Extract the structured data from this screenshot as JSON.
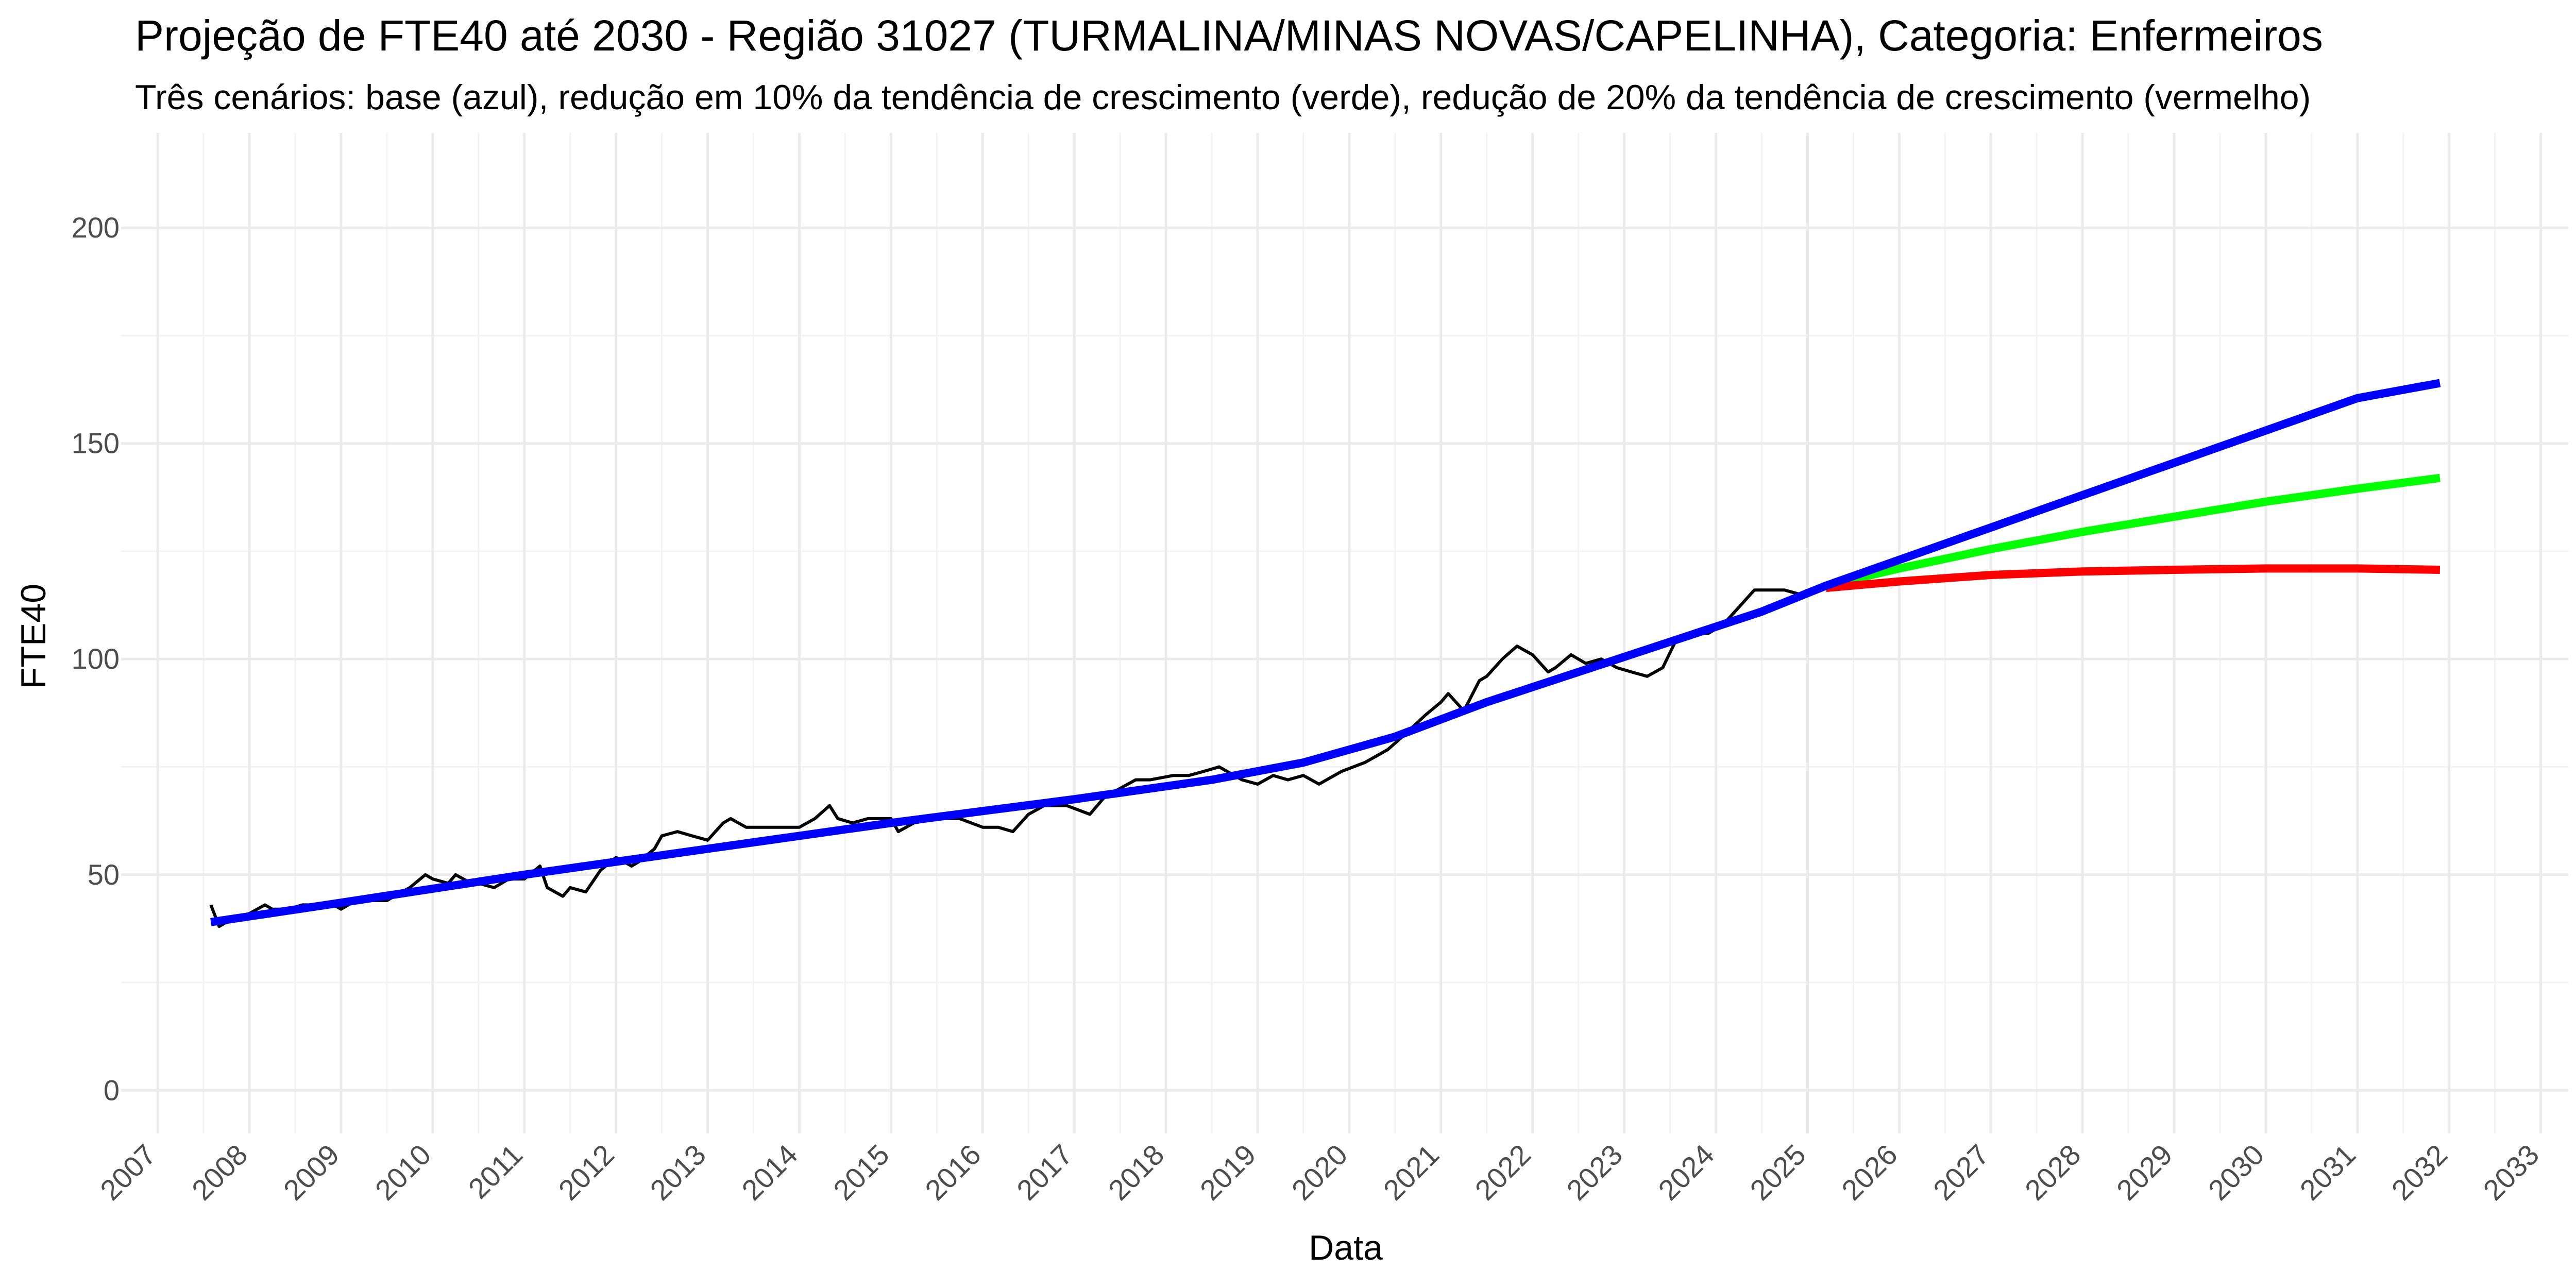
{
  "chart_data": {
    "type": "line",
    "title": "Projeção de FTE40 até 2030 - Região 31027 (TURMALINA/MINAS NOVAS/CAPELINHA), Categoria: Enfermeiros",
    "subtitle": "Três cenários: base (azul), redução em 10% da tendência de crescimento (verde), redução de 20% da tendência de crescimento (vermelho)",
    "xlabel": "Data",
    "ylabel": "FTE40",
    "xlim": [
      2006.6,
      2033.3
    ],
    "ylim": [
      -10,
      222
    ],
    "x_ticks": [
      2007,
      2008,
      2009,
      2010,
      2011,
      2012,
      2013,
      2014,
      2015,
      2016,
      2017,
      2018,
      2019,
      2020,
      2021,
      2022,
      2023,
      2024,
      2025,
      2026,
      2027,
      2028,
      2029,
      2030,
      2031,
      2032,
      2033
    ],
    "x_tick_labels": [
      "2007",
      "2008",
      "2009",
      "2010",
      "2011",
      "2012",
      "2013",
      "2014",
      "2015",
      "2016",
      "2017",
      "2018",
      "2019",
      "2020",
      "2021",
      "2022",
      "2023",
      "2024",
      "2025",
      "2026",
      "2027",
      "2028",
      "2029",
      "2030",
      "2031",
      "2032",
      "2033"
    ],
    "y_ticks": [
      0,
      50,
      100,
      150,
      200
    ],
    "y_tick_labels": [
      "0",
      "50",
      "100",
      "150",
      "200"
    ],
    "grid": true,
    "legend": "none",
    "series": [
      {
        "color": "#000000",
        "x": [
          2007.58,
          2007.67,
          2007.83,
          2008.0,
          2008.17,
          2008.25,
          2008.42,
          2008.58,
          2008.75,
          2008.92,
          2009.0,
          2009.08,
          2009.17,
          2009.33,
          2009.5,
          2009.58,
          2009.75,
          2009.92,
          2010.0,
          2010.17,
          2010.25,
          2010.42,
          2010.5,
          2010.67,
          2010.83,
          2011.0,
          2011.17,
          2011.25,
          2011.42,
          2011.5,
          2011.67,
          2011.83,
          2012.0,
          2012.17,
          2012.25,
          2012.42,
          2012.5,
          2012.67,
          2012.83,
          2013.0,
          2013.17,
          2013.25,
          2013.42,
          2013.58,
          2013.75,
          2014.0,
          2014.17,
          2014.33,
          2014.42,
          2014.58,
          2014.75,
          2015.0,
          2015.08,
          2015.25,
          2015.5,
          2015.75,
          2016.0,
          2016.17,
          2016.33,
          2016.5,
          2016.67,
          2016.92,
          2017.17,
          2017.33,
          2017.5,
          2017.67,
          2017.83,
          2018.08,
          2018.25,
          2018.42,
          2018.58,
          2018.83,
          2019.0,
          2019.17,
          2019.33,
          2019.5,
          2019.67,
          2019.92,
          2020.17,
          2020.42,
          2020.58,
          2020.83,
          2021.0,
          2021.08,
          2021.25,
          2021.42,
          2021.5,
          2021.67,
          2021.83,
          2022.0,
          2022.17,
          2022.25,
          2022.42,
          2022.58,
          2022.75,
          2022.92,
          2023.08,
          2023.25,
          2023.42,
          2023.58,
          2023.75,
          2023.92,
          2024.08,
          2024.25,
          2024.42,
          2024.58,
          2024.75,
          2024.92,
          2025.0
        ],
        "y": [
          43,
          38,
          40,
          41,
          43,
          42,
          42,
          43,
          43,
          43,
          42,
          43,
          44,
          44,
          44,
          45,
          47,
          50,
          49,
          48,
          50,
          48,
          48,
          47,
          49,
          49,
          52,
          47,
          45,
          47,
          46,
          51,
          54,
          52,
          53,
          56,
          59,
          60,
          59,
          58,
          62,
          63,
          61,
          61,
          61,
          61,
          63,
          66,
          63,
          62,
          63,
          63,
          60,
          62,
          63,
          63,
          61,
          61,
          60,
          64,
          66,
          66,
          64,
          68,
          70,
          72,
          72,
          73,
          73,
          74,
          75,
          72,
          71,
          73,
          72,
          73,
          71,
          74,
          76,
          79,
          82,
          87,
          90,
          92,
          88,
          95,
          96,
          100,
          103,
          101,
          97,
          98,
          101,
          99,
          100,
          98,
          97,
          96,
          98,
          105,
          106,
          106,
          108,
          112,
          116,
          116,
          116,
          115,
          116
        ]
      },
      {
        "color": "#0000ff",
        "x": [
          2007.58,
          2009.0,
          2011.0,
          2013.0,
          2015.0,
          2017.0,
          2018.5,
          2019.5,
          2020.5,
          2021.5,
          2022.5,
          2023.5,
          2024.5,
          2025.2,
          2026.0,
          2027.0,
          2028.0,
          2029.0,
          2030.0,
          2031.0,
          2031.9
        ],
        "y": [
          39,
          43.5,
          50,
          56,
          62,
          67.5,
          72,
          76,
          82,
          90,
          97,
          104,
          111,
          117,
          123,
          130.5,
          138,
          145.5,
          153,
          160.5,
          164
        ]
      },
      {
        "color": "#00ff00",
        "x": [
          2025.2,
          2026.0,
          2027.0,
          2028.0,
          2029.0,
          2030.0,
          2031.0,
          2031.9
        ],
        "y": [
          117,
          121,
          125.5,
          129.5,
          133,
          136.5,
          139.5,
          142
        ]
      },
      {
        "color": "#ff0000",
        "x": [
          2025.2,
          2026.0,
          2027.0,
          2028.0,
          2029.0,
          2030.0,
          2031.0,
          2031.9
        ],
        "y": [
          116.5,
          118,
          119.5,
          120.3,
          120.7,
          121,
          121,
          120.7
        ]
      }
    ]
  }
}
